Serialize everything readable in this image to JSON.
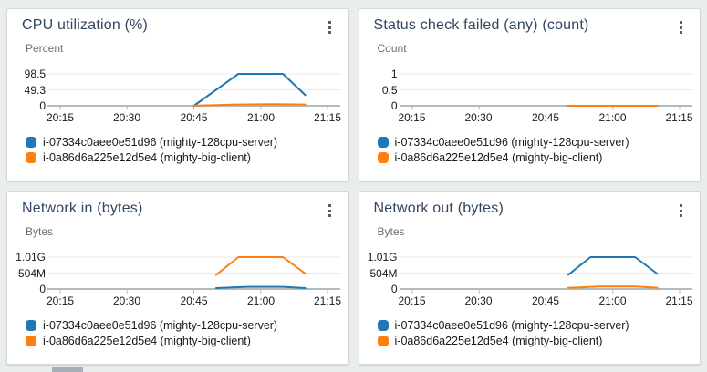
{
  "page": {
    "background_color": "#e9eded",
    "card_background": "#ffffff",
    "title_color": "#31465f"
  },
  "chart_data": [
    {
      "type": "line",
      "title": "CPU utilization (%)",
      "ylabel": "Percent",
      "yticks": [
        "98.5",
        "49.3",
        "0"
      ],
      "y_axis_top_value": 98.5,
      "xticks": [
        "20:15",
        "20:30",
        "20:45",
        "21:00",
        "21:15"
      ],
      "x_axis_minutes_span": 60,
      "grid": "horizontal",
      "legend_position": "bottom",
      "menu_icon": "kebab-menu",
      "series": [
        {
          "name": "i-07334c0aee0e51d96 (mighty-128cpu-server)",
          "color": "#1f77b4",
          "points_minutes_value": [
            [
              30,
              0
            ],
            [
              40,
              98.5
            ],
            [
              50,
              98.5
            ],
            [
              55,
              33
            ]
          ]
        },
        {
          "name": "i-0a86d6a225e12d5e4 (mighty-big-client)",
          "color": "#ff7f0e",
          "points_minutes_value": [
            [
              30,
              0.5
            ],
            [
              40,
              4
            ],
            [
              48,
              5
            ],
            [
              55,
              4
            ]
          ]
        }
      ]
    },
    {
      "type": "line",
      "title": "Status check failed (any) (count)",
      "ylabel": "Count",
      "yticks": [
        "1",
        "0.5",
        "0"
      ],
      "y_axis_top_value": 1,
      "xticks": [
        "20:15",
        "20:30",
        "20:45",
        "21:00",
        "21:15"
      ],
      "x_axis_minutes_span": 60,
      "grid": "horizontal",
      "legend_position": "bottom",
      "menu_icon": "kebab-menu",
      "series": [
        {
          "name": "i-07334c0aee0e51d96 (mighty-128cpu-server)",
          "color": "#1f77b4",
          "points_minutes_value": [
            [
              35,
              0
            ],
            [
              55,
              0
            ]
          ]
        },
        {
          "name": "i-0a86d6a225e12d5e4 (mighty-big-client)",
          "color": "#ff7f0e",
          "points_minutes_value": [
            [
              35,
              0
            ],
            [
              55,
              0
            ]
          ]
        }
      ]
    },
    {
      "type": "line",
      "title": "Network in (bytes)",
      "ylabel": "Bytes",
      "yticks": [
        "1.01G",
        "504M",
        "0"
      ],
      "y_axis_top_value": 1010,
      "y_axis_unit_note": "values in millions of bytes",
      "xticks": [
        "20:15",
        "20:30",
        "20:45",
        "21:00",
        "21:15"
      ],
      "x_axis_minutes_span": 60,
      "grid": "horizontal",
      "legend_position": "bottom",
      "menu_icon": "kebab-menu",
      "series": [
        {
          "name": "i-07334c0aee0e51d96 (mighty-128cpu-server)",
          "color": "#1f77b4",
          "points_minutes_value": [
            [
              35,
              30
            ],
            [
              42,
              70
            ],
            [
              50,
              70
            ],
            [
              55,
              28
            ]
          ]
        },
        {
          "name": "i-0a86d6a225e12d5e4 (mighty-big-client)",
          "color": "#ff7f0e",
          "points_minutes_value": [
            [
              35,
              445
            ],
            [
              40,
              1010
            ],
            [
              50,
              1010
            ],
            [
              55,
              490
            ]
          ]
        }
      ]
    },
    {
      "type": "line",
      "title": "Network out (bytes)",
      "ylabel": "Bytes",
      "yticks": [
        "1.01G",
        "504M",
        "0"
      ],
      "y_axis_top_value": 1010,
      "y_axis_unit_note": "values in millions of bytes",
      "xticks": [
        "20:15",
        "20:30",
        "20:45",
        "21:00",
        "21:15"
      ],
      "x_axis_minutes_span": 60,
      "grid": "horizontal",
      "legend_position": "bottom",
      "menu_icon": "kebab-menu",
      "series": [
        {
          "name": "i-07334c0aee0e51d96 (mighty-128cpu-server)",
          "color": "#1f77b4",
          "points_minutes_value": [
            [
              35,
              450
            ],
            [
              40,
              1010
            ],
            [
              50,
              1010
            ],
            [
              55,
              480
            ]
          ]
        },
        {
          "name": "i-0a86d6a225e12d5e4 (mighty-big-client)",
          "color": "#ff7f0e",
          "points_minutes_value": [
            [
              35,
              35
            ],
            [
              42,
              80
            ],
            [
              50,
              80
            ],
            [
              55,
              40
            ]
          ]
        }
      ]
    }
  ]
}
